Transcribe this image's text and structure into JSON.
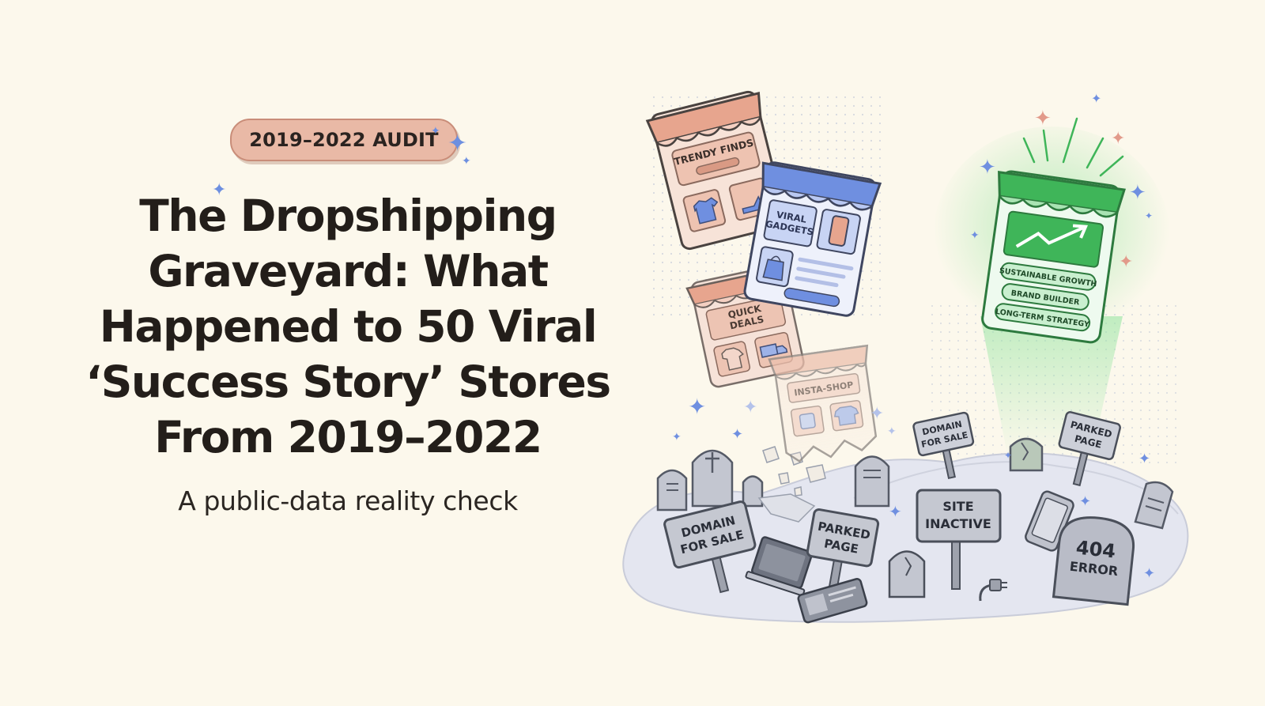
{
  "badge": "2019–2022 AUDIT",
  "title": {
    "line1": "The Dropshipping",
    "line2": "Graveyard: What",
    "line3": "Happened to 50 Viral",
    "line4": "‘Success Story’ Stores",
    "line5": "From 2019–2022"
  },
  "subtitle": "A public-data reality check",
  "stores": {
    "trendy": "TRENDY FINDS",
    "viral_line1": "VIRAL",
    "viral_line2": "GADGETS",
    "quick_line1": "QUICK",
    "quick_line2": "DEALS",
    "insta": "INSTA-SHOP"
  },
  "success_store": {
    "tags": [
      "SUSTAINABLE GROWTH",
      "BRAND BUILDER",
      "LONG-TERM STRATEGY"
    ]
  },
  "signs": {
    "domain_left_l1": "DOMAIN",
    "domain_left_l2": "FOR SALE",
    "parked_left_l1": "PARKED",
    "parked_left_l2": "PAGE",
    "domain_top_l1": "DOMAIN",
    "domain_top_l2": "FOR SALE",
    "site_l1": "SITE",
    "site_l2": "INACTIVE",
    "parked_right_l1": "PARKED",
    "parked_right_l2": "PAGE"
  },
  "tombstone_404": {
    "code": "404",
    "word": "ERROR"
  },
  "colors": {
    "background": "#fcf8ec",
    "badge": "#e9b9a6",
    "store_orange": "#e7a58e",
    "store_blue": "#6f8fe0",
    "success_green": "#3fb559",
    "grave_gray": "#b9bcc7"
  }
}
